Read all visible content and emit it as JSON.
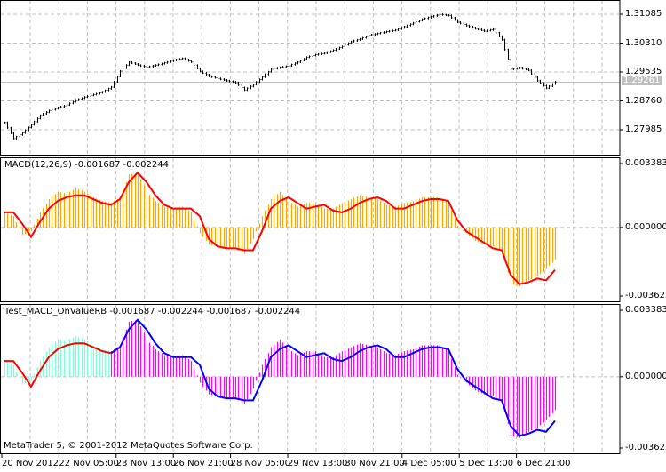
{
  "window": {
    "copyright": "MetaTrader 5, © 2001-2012 MetaQuotes Software Corp."
  },
  "colors": {
    "price_bars": "#000000",
    "grid": "#c0c0c0",
    "hist1": "#ffa500",
    "signal1": "#ff0000",
    "hist3_a": "#7fffd4",
    "hist3_b": "#ff00ff",
    "line3_a": "#ff0000",
    "line3_b": "#0000ff",
    "current_price_bg": "#c0c0c0"
  },
  "chart_data": [
    {
      "type": "bar",
      "subtype": "ohlc-bars",
      "price_axis": {
        "ticks": [
          "1.31085",
          "1.30310",
          "1.29535",
          "1.28760",
          "1.27985"
        ],
        "tick_values": [
          1.31085,
          1.3031,
          1.29535,
          1.2876,
          1.27985
        ],
        "current_price": "1.29261"
      },
      "time_axis": {
        "ticks": [
          "20 Nov 2012",
          "22 Nov 05:00",
          "23 Nov 13:00",
          "26 Nov 21:00",
          "28 Nov 05:00",
          "29 Nov 13:00",
          "30 Nov 21:00",
          "4 Dec 05:00",
          "5 Dec 13:00",
          "6 Dec 21:00"
        ]
      },
      "grid": true,
      "close": [
        1.2818,
        1.2775,
        1.279,
        1.2812,
        1.2837,
        1.285,
        1.2858,
        1.2865,
        1.2878,
        1.2886,
        1.2893,
        1.29,
        1.2913,
        1.2956,
        1.298,
        1.2972,
        1.2966,
        1.2972,
        1.2978,
        1.2985,
        1.299,
        1.298,
        1.2955,
        1.2942,
        1.2936,
        1.293,
        1.2925,
        1.2905,
        1.292,
        1.294,
        1.2961,
        1.2966,
        1.297,
        1.298,
        1.2993,
        1.3,
        1.3004,
        1.3012,
        1.3022,
        1.3035,
        1.3042,
        1.3052,
        1.3057,
        1.3062,
        1.3066,
        1.3075,
        1.3085,
        1.3095,
        1.3102,
        1.3108,
        1.3105,
        1.3087,
        1.3078,
        1.307,
        1.3063,
        1.3068,
        1.304,
        1.2961,
        1.2965,
        1.2958,
        1.293,
        1.291,
        1.2927
      ]
    },
    {
      "type": "bar",
      "title": "MACD(12,26,9) -0.001687 -0.002244",
      "yaxis": {
        "ticks": [
          "0.003383",
          "0.000000",
          "-0.003625"
        ],
        "ylim": [
          -0.003625,
          0.003383
        ]
      },
      "histogram": [
        0.0008,
        0.0006,
        -0.0004,
        -0.0002,
        0.0008,
        0.0015,
        0.0019,
        0.0018,
        0.0021,
        0.0019,
        0.0016,
        0.0014,
        0.0013,
        0.0016,
        0.0028,
        0.0029,
        0.0019,
        0.0014,
        0.0011,
        0.001,
        0.0011,
        0.0008,
        -0.0003,
        -0.0009,
        -0.001,
        -0.0011,
        -0.0011,
        -0.0014,
        -0.0006,
        0.0006,
        0.0015,
        0.0019,
        0.0014,
        0.0011,
        0.0013,
        0.0013,
        0.001,
        0.001,
        0.0013,
        0.0015,
        0.0017,
        0.0016,
        0.0015,
        0.0012,
        0.0011,
        0.0013,
        0.0014,
        0.0016,
        0.0016,
        0.0016,
        0.0013,
        0.0001,
        -0.0003,
        -0.0007,
        -0.0009,
        -0.001,
        -0.0012,
        -0.003,
        -0.0031,
        -0.0028,
        -0.0026,
        -0.0022,
        -0.001687
      ],
      "signal": [
        0.0008,
        0.0008,
        0.0002,
        -0.0005,
        0.0003,
        0.001,
        0.0014,
        0.0016,
        0.0017,
        0.0017,
        0.0015,
        0.0013,
        0.0012,
        0.0015,
        0.0024,
        0.0029,
        0.0024,
        0.0017,
        0.0012,
        0.001,
        0.001,
        0.001,
        0.0006,
        -0.0006,
        -0.001,
        -0.0011,
        -0.0011,
        -0.0012,
        -0.0012,
        -0.0002,
        0.001,
        0.0014,
        0.0016,
        0.0013,
        0.001,
        0.0011,
        0.0012,
        0.0009,
        0.0008,
        0.001,
        0.0013,
        0.0015,
        0.0016,
        0.0014,
        0.001,
        0.001,
        0.0012,
        0.0014,
        0.0015,
        0.0015,
        0.0014,
        0.0004,
        -0.0002,
        -0.0005,
        -0.0008,
        -0.0011,
        -0.0012,
        -0.0025,
        -0.003,
        -0.0029,
        -0.0027,
        -0.0028,
        -0.002244
      ]
    },
    {
      "type": "bar",
      "title": "Test_MACD_OnValueRB -0.001687 -0.002244 -0.001687 -0.002244",
      "yaxis": {
        "ticks": [
          "0.003383",
          "0.000000",
          "-0.003625"
        ],
        "ylim": [
          -0.003625,
          0.003383
        ]
      },
      "color_change_index": 12,
      "same_data_as": "MACD"
    }
  ]
}
